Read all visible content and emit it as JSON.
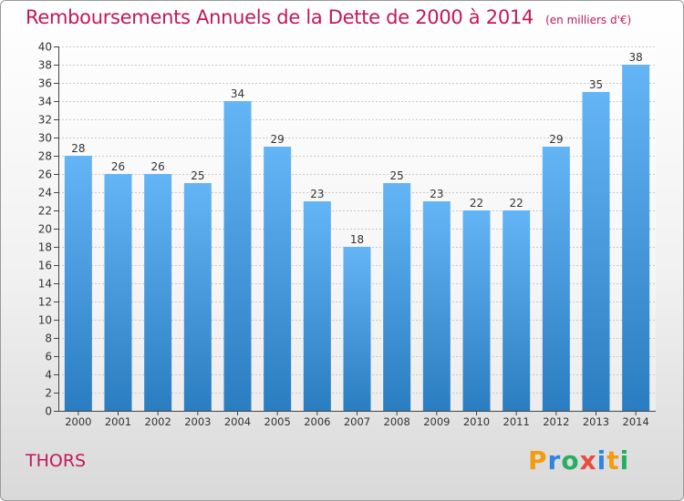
{
  "header": {
    "title": "Remboursements Annuels de la Dette de 2000 à 2014",
    "unit": "(en milliers d'€)"
  },
  "footer": {
    "commune": "THORS",
    "logo_text": "Proxiti",
    "logo_colors": [
      "#f39c12",
      "#2e86de",
      "#27ae60",
      "#e74c3c",
      "#2e86de",
      "#f39c12",
      "#27ae60"
    ]
  },
  "chart_data": {
    "type": "bar",
    "categories": [
      "2000",
      "2001",
      "2002",
      "2003",
      "2004",
      "2005",
      "2006",
      "2007",
      "2008",
      "2009",
      "2010",
      "2011",
      "2012",
      "2013",
      "2014"
    ],
    "values": [
      28,
      26,
      26,
      25,
      34,
      29,
      23,
      18,
      25,
      23,
      22,
      22,
      29,
      35,
      38
    ],
    "ylim": [
      0,
      40
    ],
    "ytick_step": 2,
    "grid": true,
    "bar_color_top": "#64b5f6",
    "bar_color_bottom": "#2a7dc0",
    "title": "Remboursements Annuels de la Dette de 2000 à 2014",
    "xlabel": "",
    "ylabel": ""
  }
}
